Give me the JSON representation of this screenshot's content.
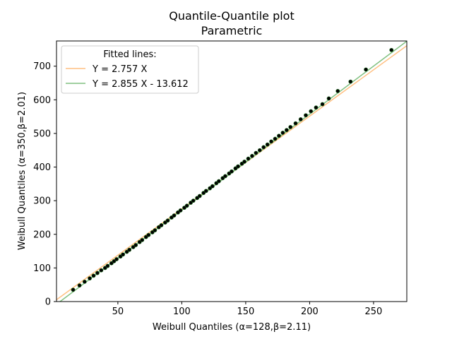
{
  "chart_data": {
    "type": "scatter",
    "title": "Quantile-Quantile plot",
    "subtitle": "Parametric",
    "xlabel": "Weibull Quantiles (α=128,β=2.11)",
    "ylabel": "Weibull Quantiles (α=350,β=2.01)",
    "xlim": [
      2,
      276
    ],
    "ylim": [
      0,
      775
    ],
    "x_ticks": [
      50,
      100,
      150,
      200,
      250
    ],
    "y_ticks": [
      0,
      100,
      200,
      300,
      400,
      500,
      600,
      700
    ],
    "grid": false,
    "legend": {
      "title": "Fitted lines:",
      "placement": "top-left",
      "entries": [
        {
          "label": "Y = 2.757 X",
          "color": "#ffbf80",
          "slope": 2.757,
          "intercept": 0
        },
        {
          "label": "Y = 2.855 X - 13.612",
          "color": "#80c080",
          "slope": 2.855,
          "intercept": -13.612
        }
      ]
    },
    "series": [
      {
        "marker_color": "#000000",
        "points": [
          [
            15,
            35
          ],
          [
            20,
            48
          ],
          [
            24,
            59
          ],
          [
            28,
            69
          ],
          [
            31,
            77
          ],
          [
            34,
            85
          ],
          [
            37,
            93
          ],
          [
            40,
            100
          ],
          [
            42,
            106
          ],
          [
            45,
            114
          ],
          [
            47,
            120
          ],
          [
            49,
            126
          ],
          [
            52,
            134
          ],
          [
            54,
            140
          ],
          [
            57,
            148
          ],
          [
            59,
            154
          ],
          [
            62,
            162
          ],
          [
            64,
            168
          ],
          [
            67,
            177
          ],
          [
            69,
            183
          ],
          [
            72,
            192
          ],
          [
            74,
            198
          ],
          [
            77,
            206
          ],
          [
            79,
            212
          ],
          [
            82,
            221
          ],
          [
            84,
            227
          ],
          [
            87,
            235
          ],
          [
            89,
            241
          ],
          [
            92,
            250
          ],
          [
            94,
            256
          ],
          [
            97,
            265
          ],
          [
            99,
            271
          ],
          [
            102,
            279
          ],
          [
            104,
            285
          ],
          [
            107,
            294
          ],
          [
            109,
            300
          ],
          [
            112,
            308
          ],
          [
            114,
            314
          ],
          [
            117,
            323
          ],
          [
            119,
            329
          ],
          [
            122,
            337
          ],
          [
            124,
            343
          ],
          [
            127,
            352
          ],
          [
            129,
            358
          ],
          [
            132,
            367
          ],
          [
            134,
            373
          ],
          [
            137,
            381
          ],
          [
            139,
            387
          ],
          [
            142,
            396
          ],
          [
            144,
            402
          ],
          [
            147,
            410
          ],
          [
            149,
            416
          ],
          [
            152,
            425
          ],
          [
            155,
            433
          ],
          [
            158,
            442
          ],
          [
            161,
            450
          ],
          [
            164,
            459
          ],
          [
            167,
            467
          ],
          [
            170,
            476
          ],
          [
            173,
            484
          ],
          [
            176,
            493
          ],
          [
            179,
            502
          ],
          [
            182,
            510
          ],
          [
            185,
            519
          ],
          [
            189,
            530
          ],
          [
            193,
            542
          ],
          [
            197,
            554
          ],
          [
            201,
            566
          ],
          [
            205,
            577
          ],
          [
            210,
            587
          ],
          [
            215,
            604
          ],
          [
            222,
            626
          ],
          [
            232,
            654
          ],
          [
            244,
            690
          ],
          [
            264,
            748
          ]
        ]
      }
    ],
    "colors": {
      "line1": "#ffbf80",
      "line2": "#80c080",
      "marker_fill": "#000000",
      "marker_edge": "#1f6e1f"
    }
  }
}
